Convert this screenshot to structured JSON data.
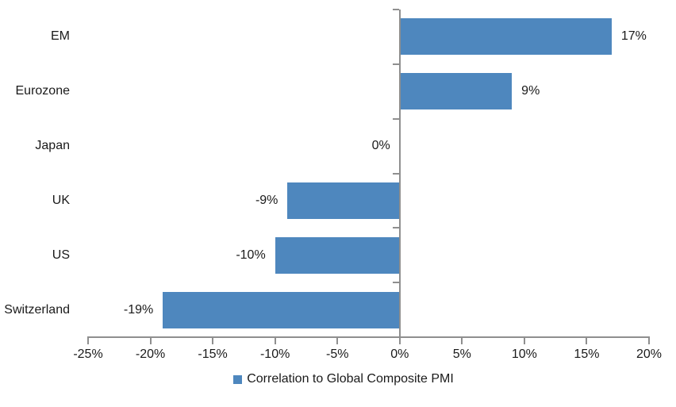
{
  "chart": {
    "colors": {
      "bar": "#4E87BE",
      "axis": "#8F8F8F",
      "text": "#1A1A1A",
      "background": "#FFFFFF"
    }
  },
  "chart_data": {
    "type": "bar",
    "orientation": "horizontal",
    "title": "",
    "xlabel": "",
    "ylabel": "",
    "grid": false,
    "categories": [
      "EM",
      "Eurozone",
      "Japan",
      "UK",
      "US",
      "Switzerland"
    ],
    "values": [
      17,
      9,
      0,
      -9,
      -10,
      -19
    ],
    "data_labels": [
      "17%",
      "9%",
      "0%",
      "-9%",
      "-10%",
      "-19%"
    ],
    "series_name": "Correlation to Global Composite PMI",
    "xlim": [
      -25,
      20
    ],
    "x_tick_values": [
      -25,
      -20,
      -15,
      -10,
      -5,
      0,
      5,
      10,
      15,
      20
    ],
    "x_tick_labels": [
      "-25%",
      "-20%",
      "-15%",
      "-10%",
      "-5%",
      "0%",
      "5%",
      "10%",
      "15%",
      "20%"
    ],
    "legend_position": "bottom"
  }
}
